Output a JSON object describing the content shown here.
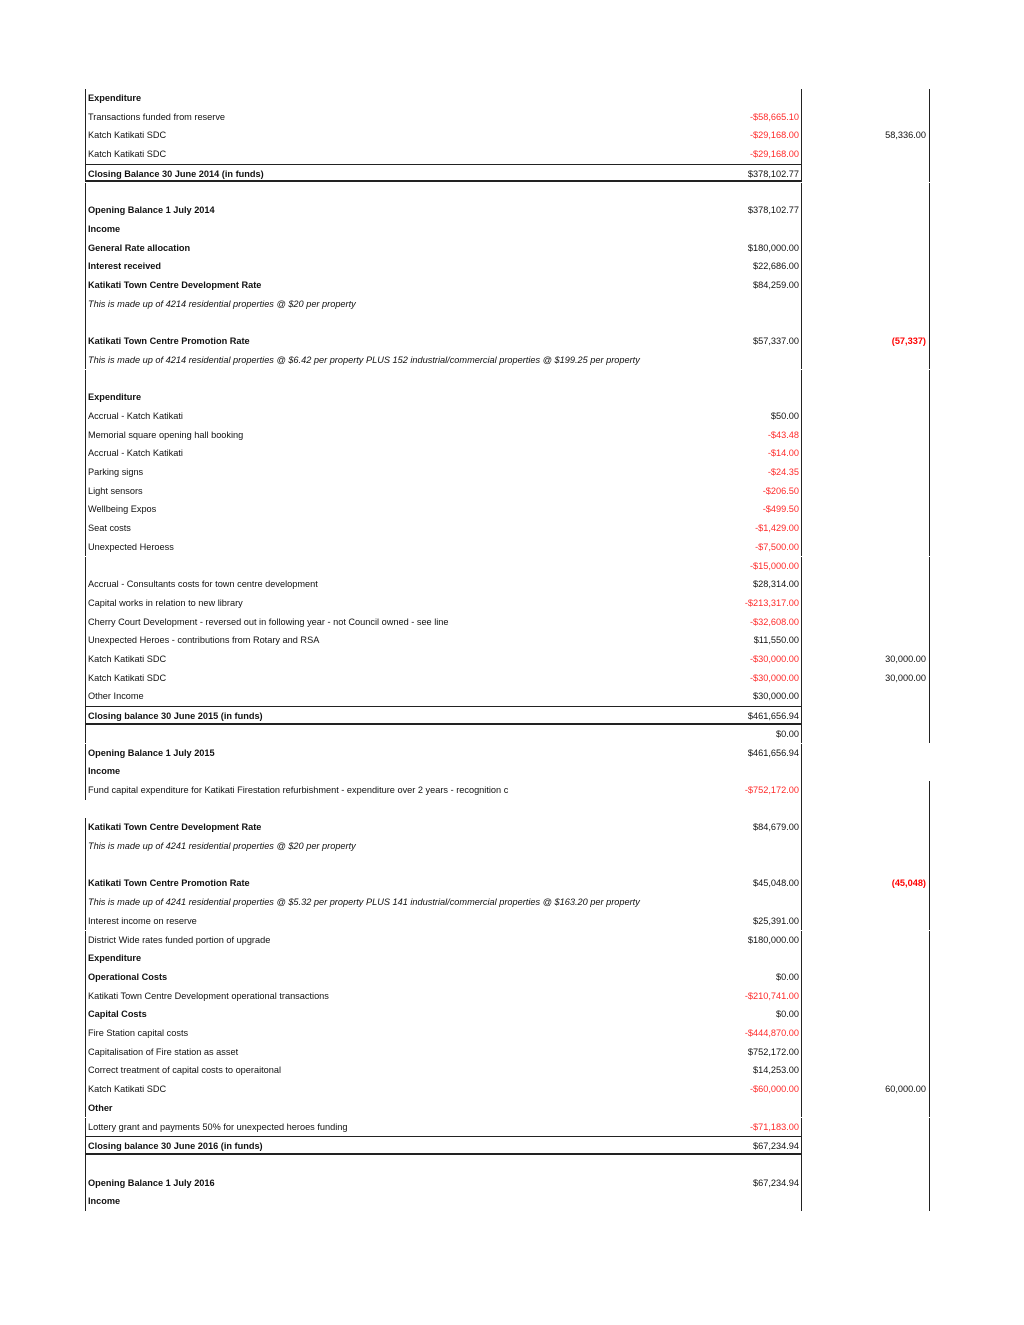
{
  "colors": {
    "negative": "#ff2a2a"
  },
  "rows": [
    {
      "label": "Expenditure",
      "style": "b"
    },
    {
      "label": "Transactions funded from reserve",
      "value": "-$58,665.10",
      "neg": true
    },
    {
      "label": "Katch Katikati SDC",
      "value": "-$29,168.00",
      "neg": true,
      "right": "58,336.00"
    },
    {
      "label": "Katch Katikati SDC",
      "value": "-$29,168.00",
      "neg": true
    },
    {
      "label": "Closing Balance 30 June 2014 (in funds)",
      "style": "b",
      "value": "$378,102.77",
      "closing": true
    },
    {
      "label": ""
    },
    {
      "label": "Opening Balance 1 July 2014",
      "style": "b",
      "value": "$378,102.77"
    },
    {
      "label": "Income",
      "style": "b"
    },
    {
      "label": "General Rate allocation",
      "style": "b",
      "value": "$180,000.00"
    },
    {
      "label": "Interest received",
      "style": "b",
      "value": "$22,686.00"
    },
    {
      "label": "Katikati Town Centre Development Rate",
      "style": "b",
      "value": "$84,259.00"
    },
    {
      "label": "This is made up of 4214 residential properties @ $20 per property",
      "style": "i"
    },
    {
      "label": ""
    },
    {
      "label": "Katikati Town Centre Promotion Rate",
      "style": "b",
      "value": "$57,337.00",
      "right": "(57,337)",
      "rneg": true
    },
    {
      "label": "This is made up of 4214 residential properties @ $6.42 per property PLUS 152 industrial/commercial properties @ $199.25 per property",
      "style": "i"
    },
    {
      "label": ""
    },
    {
      "label": "Expenditure",
      "style": "b"
    },
    {
      "label": "Accrual - Katch Katikati",
      "value": "$50.00"
    },
    {
      "label": "Memorial square opening hall booking",
      "value": "-$43.48",
      "neg": true
    },
    {
      "label": "Accrual - Katch Katikati",
      "value": "-$14.00",
      "neg": true
    },
    {
      "label": "Parking signs",
      "value": "-$24.35",
      "neg": true
    },
    {
      "label": "Light sensors",
      "value": "-$206.50",
      "neg": true
    },
    {
      "label": "Wellbeing Expos",
      "value": "-$499.50",
      "neg": true
    },
    {
      "label": "Seat costs",
      "value": "-$1,429.00",
      "neg": true
    },
    {
      "label": "Unexpected Heroess",
      "value": "-$7,500.00",
      "neg": true
    },
    {
      "label": "",
      "value": "-$15,000.00",
      "neg": true
    },
    {
      "label": "Accrual - Consultants costs for town centre development",
      "value": "$28,314.00"
    },
    {
      "label": "Capital works in relation to new library",
      "value": "-$213,317.00",
      "neg": true
    },
    {
      "label": "Cherry Court Development - reversed out in following year - not Council owned - see line",
      "value": "-$32,608.00",
      "neg": true
    },
    {
      "label": "Unexpected Heroes - contributions from Rotary and RSA",
      "value": "$11,550.00"
    },
    {
      "label": "Katch Katikati SDC",
      "value": "-$30,000.00",
      "neg": true,
      "right": "30,000.00"
    },
    {
      "label": "Katch Katikati SDC",
      "value": "-$30,000.00",
      "neg": true,
      "right": "30,000.00"
    },
    {
      "label": "Other Income",
      "value": "$30,000.00"
    },
    {
      "label": "Closing balance 30 June 2015 (in funds)",
      "style": "b",
      "value": "$461,656.94",
      "closing": true
    },
    {
      "label": "",
      "value": "$0.00"
    },
    {
      "label": "Opening Balance 1 July 2015",
      "style": "b",
      "value": "$461,656.94"
    },
    {
      "label": "Income",
      "style": "b"
    },
    {
      "label": "Fund capital expenditure for Katikati Firestation refurbishment - expenditure over 2 years - recognition c",
      "value": "-$752,172.00",
      "neg": true
    },
    {
      "label": ""
    },
    {
      "label": "Katikati Town Centre Development Rate",
      "style": "b",
      "value": "$84,679.00"
    },
    {
      "label": "This is made up of 4241 residential properties @ $20 per property",
      "style": "i"
    },
    {
      "label": ""
    },
    {
      "label": "Katikati Town Centre Promotion Rate",
      "style": "b",
      "value": "$45,048.00",
      "right": "(45,048)",
      "rneg": true
    },
    {
      "label": "This is made up of 4241 residential properties @ $5.32 per property PLUS 141 industrial/commercial properties @ $163.20 per property",
      "style": "i"
    },
    {
      "label": "Interest income on reserve",
      "value": "$25,391.00"
    },
    {
      "label": "District Wide rates funded portion of upgrade",
      "value": "$180,000.00"
    },
    {
      "label": "Expenditure",
      "style": "b"
    },
    {
      "label": "Operational Costs",
      "style": "b",
      "value": "$0.00"
    },
    {
      "label": "Katikati Town Centre Development operational transactions",
      "value": "-$210,741.00",
      "neg": true
    },
    {
      "label": "Capital Costs",
      "style": "b",
      "value": "$0.00"
    },
    {
      "label": "Fire Station capital costs",
      "value": "-$444,870.00",
      "neg": true
    },
    {
      "label": "Capitalisation of Fire station as asset",
      "value": "$752,172.00"
    },
    {
      "label": "Correct treatment of capital costs to operaitonal",
      "value": "$14,253.00"
    },
    {
      "label": "Katch Katikati SDC",
      "value": "-$60,000.00",
      "neg": true,
      "right": "60,000.00"
    },
    {
      "label": "Other",
      "style": "b"
    },
    {
      "label": "Lottery grant and payments 50% for unexpected heroes funding",
      "value": "-$71,183.00",
      "neg": true
    },
    {
      "label": "Closing balance 30 June 2016 (in funds)",
      "style": "b",
      "value": "$67,234.94",
      "closing": true
    },
    {
      "label": ""
    },
    {
      "label": "Opening Balance 1 July 2016",
      "style": "b",
      "value": "$67,234.94"
    },
    {
      "label": "Income",
      "style": "b"
    }
  ]
}
